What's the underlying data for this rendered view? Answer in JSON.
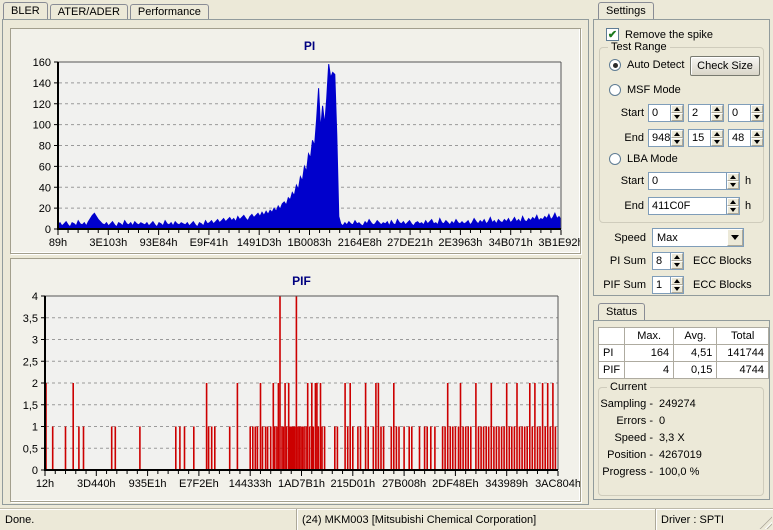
{
  "tabs": {
    "items": [
      {
        "label": "BLER"
      },
      {
        "label": "ATER/ADER"
      },
      {
        "label": "Performance"
      }
    ]
  },
  "settings": {
    "tab_label": "Settings",
    "remove_spike_label": "Remove the spike",
    "test_range": {
      "title": "Test Range",
      "auto_detect_label": "Auto Detect",
      "check_size_label": "Check Size",
      "msf_mode_label": "MSF Mode",
      "start_label": "Start",
      "end_label": "End",
      "msf_start": [
        "0",
        "2",
        "0"
      ],
      "msf_end": [
        "948",
        "15",
        "48"
      ],
      "lba_mode_label": "LBA Mode",
      "lba_start": "0",
      "lba_end": "411C0F",
      "hex_suffix": "h"
    },
    "speed_label": "Speed",
    "speed_value": "Max",
    "pi_sum_label": "PI Sum",
    "pi_sum_value": "8",
    "pif_sum_label": "PIF Sum",
    "pif_sum_value": "1",
    "ecc_blocks_label": "ECC Blocks"
  },
  "status": {
    "tab_label": "Status",
    "table": {
      "headers": [
        "",
        "Max.",
        "Avg.",
        "Total"
      ],
      "rows": [
        {
          "label": "PI",
          "max": "164",
          "avg": "4,51",
          "total": "141744"
        },
        {
          "label": "PIF",
          "max": "4",
          "avg": "0,15",
          "total": "4744"
        }
      ]
    },
    "current": {
      "title": "Current",
      "rows": [
        {
          "label": "Sampling -",
          "value": "249274"
        },
        {
          "label": "Errors -",
          "value": "0"
        },
        {
          "label": "Speed -",
          "value": "3,3 X"
        },
        {
          "label": "Position -",
          "value": "4267019"
        },
        {
          "label": "Progress -",
          "value": "100,0 %"
        }
      ]
    }
  },
  "statusbar": {
    "left": "Done.",
    "center": "(24) MKM003 [Mitsubishi Chemical Corporation]",
    "right": "Driver : SPTI"
  },
  "chart_data": [
    {
      "id": "pi",
      "type": "area",
      "title": "PI",
      "color": "#0000cc",
      "title_color": "#000080",
      "grid": true,
      "ylim": [
        0,
        160
      ],
      "yticks": [
        0,
        20,
        40,
        60,
        80,
        100,
        120,
        140,
        160
      ],
      "ytick_labels": [
        "0",
        "20",
        "40",
        "60",
        "80",
        "100",
        "120",
        "140",
        "160"
      ],
      "xtick_labels": [
        "89h",
        "3E103h",
        "93E84h",
        "E9F41h",
        "1491D3h",
        "1B0083h",
        "2164E8h",
        "27DE21h",
        "2E3963h",
        "34B071h",
        "3B1E92h"
      ],
      "values": [
        4,
        6,
        3,
        5,
        7,
        4,
        2,
        6,
        5,
        3,
        8,
        5,
        4,
        6,
        3,
        7,
        10,
        13,
        15,
        12,
        9,
        7,
        5,
        4,
        6,
        3,
        5,
        7,
        4,
        2,
        6,
        5,
        3,
        8,
        5,
        4,
        6,
        3,
        7,
        5,
        4,
        6,
        5,
        4,
        6,
        3,
        5,
        7,
        4,
        2,
        6,
        5,
        3,
        8,
        5,
        4,
        6,
        3,
        7,
        5,
        4,
        6,
        5,
        4,
        6,
        3,
        5,
        7,
        4,
        2,
        6,
        5,
        3,
        8,
        5,
        6,
        8,
        5,
        7,
        9,
        6,
        8,
        10,
        7,
        9,
        11,
        8,
        10,
        7,
        12,
        9,
        11,
        13,
        10,
        8,
        12,
        14,
        11,
        13,
        15,
        12,
        16,
        13,
        17,
        14,
        18,
        16,
        20,
        17,
        22,
        19,
        24,
        26,
        23,
        30,
        28,
        35,
        32,
        42,
        38,
        50,
        46,
        60,
        55,
        72,
        68,
        85,
        80,
        105,
        135,
        95,
        118,
        100,
        125,
        158,
        145,
        150,
        148,
        90,
        12,
        5,
        3,
        6,
        4,
        7,
        5,
        4,
        8,
        5,
        6,
        4,
        3,
        7,
        5,
        9,
        6,
        4,
        5,
        8,
        6,
        4,
        6,
        5,
        7,
        3,
        8,
        5,
        4,
        9,
        6,
        5,
        7,
        4,
        6,
        8,
        5,
        3,
        6,
        7,
        5,
        6,
        4,
        8,
        5,
        7,
        9,
        5,
        6,
        4,
        10,
        6,
        5,
        8,
        6,
        4,
        7,
        5,
        9,
        6,
        5,
        7,
        5,
        6,
        8,
        4,
        6,
        10,
        7,
        5,
        8,
        6,
        9,
        5,
        7,
        11,
        6,
        8,
        5,
        9,
        7,
        6,
        9,
        7,
        10,
        6,
        8,
        11,
        7,
        9,
        6,
        12,
        8,
        7,
        10,
        8,
        11,
        9,
        13,
        8,
        10,
        9,
        12,
        10,
        14,
        9,
        11,
        15,
        10,
        12,
        9
      ]
    },
    {
      "id": "pif",
      "type": "bars",
      "title": "PIF",
      "color": "#cc0000",
      "title_color": "#000080",
      "grid": true,
      "ylim": [
        0,
        4
      ],
      "yticks": [
        0,
        0.5,
        1,
        1.5,
        2,
        2.5,
        3,
        3.5,
        4
      ],
      "ytick_labels": [
        "0",
        "0,5",
        "1",
        "1,5",
        "2",
        "2,5",
        "3",
        "3,5",
        "4"
      ],
      "xtick_labels": [
        "12h",
        "3D440h",
        "935E1h",
        "E7F2Eh",
        "144333h",
        "1AD7B1h",
        "215D01h",
        "27B008h",
        "2DF48Eh",
        "343989h",
        "3AC804h"
      ],
      "bars": [
        [
          0.002,
          2
        ],
        [
          0.015,
          1
        ],
        [
          0.04,
          1
        ],
        [
          0.055,
          2
        ],
        [
          0.066,
          1
        ],
        [
          0.075,
          1
        ],
        [
          0.13,
          1
        ],
        [
          0.137,
          1
        ],
        [
          0.185,
          1
        ],
        [
          0.255,
          1
        ],
        [
          0.263,
          1
        ],
        [
          0.272,
          1
        ],
        [
          0.29,
          1
        ],
        [
          0.315,
          2
        ],
        [
          0.319,
          1
        ],
        [
          0.325,
          1
        ],
        [
          0.331,
          1
        ],
        [
          0.36,
          1
        ],
        [
          0.375,
          2
        ],
        [
          0.4,
          1
        ],
        [
          0.405,
          1
        ],
        [
          0.41,
          1
        ],
        [
          0.414,
          1
        ],
        [
          0.42,
          2
        ],
        [
          0.424,
          1
        ],
        [
          0.43,
          1
        ],
        [
          0.434,
          1
        ],
        [
          0.44,
          1
        ],
        [
          0.445,
          2
        ],
        [
          0.448,
          1
        ],
        [
          0.452,
          1
        ],
        [
          0.455,
          2
        ],
        [
          0.458,
          4
        ],
        [
          0.462,
          1
        ],
        [
          0.465,
          1
        ],
        [
          0.468,
          2
        ],
        [
          0.471,
          1
        ],
        [
          0.475,
          2
        ],
        [
          0.478,
          1
        ],
        [
          0.481,
          1
        ],
        [
          0.484,
          1
        ],
        [
          0.487,
          1
        ],
        [
          0.49,
          4
        ],
        [
          0.493,
          1
        ],
        [
          0.496,
          1
        ],
        [
          0.499,
          1
        ],
        [
          0.502,
          1
        ],
        [
          0.505,
          1
        ],
        [
          0.509,
          1
        ],
        [
          0.512,
          2
        ],
        [
          0.516,
          1
        ],
        [
          0.52,
          2
        ],
        [
          0.523,
          1
        ],
        [
          0.527,
          2
        ],
        [
          0.53,
          2
        ],
        [
          0.533,
          1
        ],
        [
          0.537,
          2
        ],
        [
          0.54,
          1
        ],
        [
          0.545,
          1
        ],
        [
          0.565,
          1
        ],
        [
          0.57,
          1
        ],
        [
          0.585,
          2
        ],
        [
          0.59,
          1
        ],
        [
          0.595,
          2
        ],
        [
          0.6,
          1
        ],
        [
          0.61,
          1
        ],
        [
          0.615,
          1
        ],
        [
          0.625,
          2
        ],
        [
          0.63,
          1
        ],
        [
          0.64,
          1
        ],
        [
          0.645,
          2
        ],
        [
          0.65,
          2
        ],
        [
          0.655,
          1
        ],
        [
          0.66,
          1
        ],
        [
          0.675,
          1
        ],
        [
          0.68,
          2
        ],
        [
          0.685,
          1
        ],
        [
          0.69,
          1
        ],
        [
          0.7,
          1
        ],
        [
          0.71,
          1
        ],
        [
          0.715,
          1
        ],
        [
          0.73,
          1
        ],
        [
          0.74,
          1
        ],
        [
          0.745,
          1
        ],
        [
          0.752,
          1
        ],
        [
          0.76,
          1
        ],
        [
          0.775,
          1
        ],
        [
          0.78,
          1
        ],
        [
          0.785,
          2
        ],
        [
          0.79,
          1
        ],
        [
          0.795,
          1
        ],
        [
          0.8,
          1
        ],
        [
          0.806,
          1
        ],
        [
          0.81,
          2
        ],
        [
          0.815,
          1
        ],
        [
          0.82,
          1
        ],
        [
          0.825,
          1
        ],
        [
          0.83,
          1
        ],
        [
          0.84,
          2
        ],
        [
          0.845,
          1
        ],
        [
          0.85,
          1
        ],
        [
          0.855,
          1
        ],
        [
          0.86,
          1
        ],
        [
          0.865,
          1
        ],
        [
          0.87,
          2
        ],
        [
          0.875,
          1
        ],
        [
          0.88,
          1
        ],
        [
          0.885,
          1
        ],
        [
          0.89,
          1
        ],
        [
          0.895,
          1
        ],
        [
          0.9,
          2
        ],
        [
          0.905,
          1
        ],
        [
          0.91,
          1
        ],
        [
          0.915,
          1
        ],
        [
          0.92,
          2
        ],
        [
          0.925,
          1
        ],
        [
          0.93,
          1
        ],
        [
          0.935,
          1
        ],
        [
          0.94,
          1
        ],
        [
          0.945,
          2
        ],
        [
          0.95,
          1
        ],
        [
          0.955,
          2
        ],
        [
          0.96,
          1
        ],
        [
          0.965,
          1
        ],
        [
          0.97,
          2
        ],
        [
          0.975,
          1
        ],
        [
          0.98,
          2
        ],
        [
          0.985,
          1
        ],
        [
          0.99,
          2
        ],
        [
          0.995,
          1
        ]
      ]
    }
  ]
}
